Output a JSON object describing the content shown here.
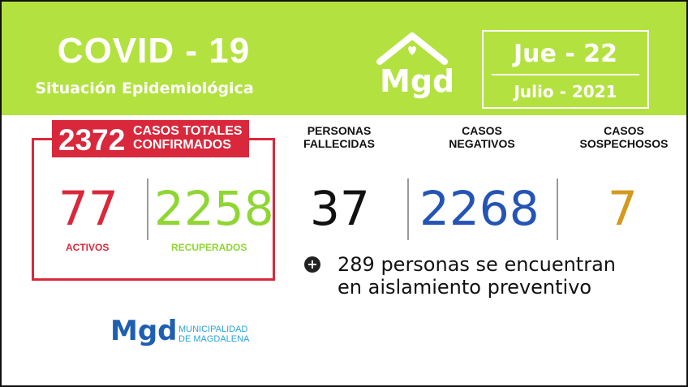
{
  "header": {
    "title": "COVID - 19",
    "subtitle": "Situación Epidemiológica",
    "logo_text": "Mgd",
    "date_day": "Jue - 22",
    "date_month": "Julio - 2021"
  },
  "totals": {
    "total": "2372",
    "total_label_1": "CASOS TOTALES",
    "total_label_2": "CONFIRMADOS",
    "activos": "77",
    "activos_label": "ACTIVOS",
    "recuperados": "2258",
    "recuperados_label": "RECUPERADOS"
  },
  "stats": {
    "fallecidas_label_1": "PERSONAS",
    "fallecidas_label_2": "FALLECIDAS",
    "fallecidas": "37",
    "negativos_label_1": "CASOS",
    "negativos_label_2": "NEGATIVOS",
    "negativos": "2268",
    "sospechosos_label_1": "CASOS",
    "sospechosos_label_2": "SOSPECHOSOS",
    "sospechosos": "7"
  },
  "note": {
    "icon": "+",
    "line_1": "289 personas se encuentran",
    "line_2": "en aislamiento preventivo"
  },
  "footer": {
    "logo_text": "Mgd",
    "name_1": "MUNICIPALIDAD",
    "name_2": "DE MAGDALENA"
  },
  "colors": {
    "header_bg": "#b3e240",
    "red": "#d9283c",
    "green": "#8fd633",
    "blue": "#2454b4",
    "orange": "#d39a1f",
    "dark": "#111111"
  }
}
